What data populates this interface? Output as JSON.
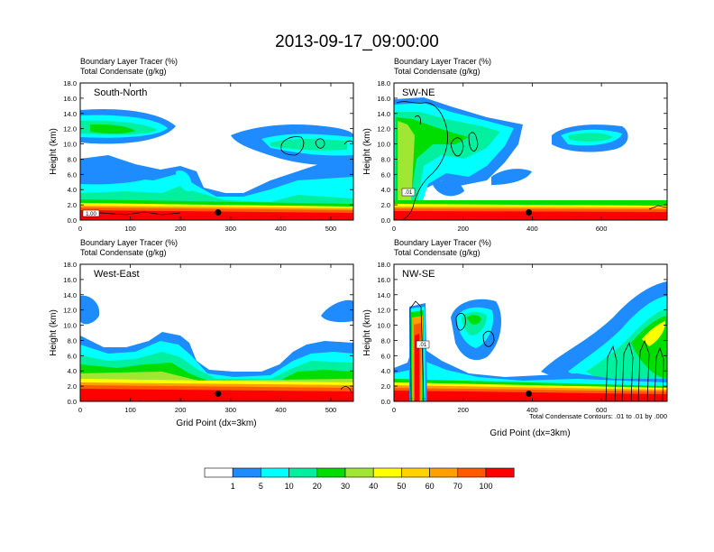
{
  "figure_title": "2013-09-17_09:00:00",
  "shared": {
    "var_line1": "Boundary Layer Tracer   (%)",
    "var_line2": "Total Condensate   (g/kg)",
    "ylabel": "Height (km)",
    "xlabel": "Grid Point (dx=3km)",
    "contour_note": "Total Condensate Contours: .01 to .01 by .000"
  },
  "colors": {
    "palette": [
      "#ffffff",
      "#1e8cff",
      "#00ffff",
      "#00f0a0",
      "#00dd00",
      "#a0e632",
      "#ffff00",
      "#ffd200",
      "#ffa000",
      "#ff5a00",
      "#ff0000"
    ],
    "dot": "#000000",
    "frame": "#000000"
  },
  "colorbar": {
    "labels": [
      "1",
      "5",
      "10",
      "20",
      "30",
      "40",
      "50",
      "60",
      "70",
      "100"
    ]
  },
  "chart_data": [
    {
      "type": "heatmap",
      "title": "South-North",
      "xlabel": "",
      "ylabel": "Height (km)",
      "xlim": [
        0,
        545
      ],
      "ylim": [
        0,
        18
      ],
      "xticks": [
        "0",
        "100",
        "200",
        "300",
        "400",
        "500"
      ],
      "yticks": [
        "0.0",
        "2.0",
        "4.0",
        "6.0",
        "8.0",
        "10.0",
        "12.0",
        "14.0",
        "16.0",
        "18.0"
      ],
      "marker": {
        "x": 275,
        "y": 1.0
      },
      "contour_labels": [
        "1.00"
      ]
    },
    {
      "type": "heatmap",
      "title": "SW-NE",
      "xlabel": "",
      "ylabel": "Height (km)",
      "xlim": [
        0,
        790
      ],
      "ylim": [
        0,
        18
      ],
      "xticks": [
        "0",
        "200",
        "400",
        "600"
      ],
      "yticks": [
        "0.0",
        "2.0",
        "4.0",
        "6.0",
        "8.0",
        "10.0",
        "12.0",
        "14.0",
        "16.0",
        "18.0"
      ],
      "marker": {
        "x": 390,
        "y": 1.0
      },
      "contour_labels": [
        ".01"
      ]
    },
    {
      "type": "heatmap",
      "title": "West-East",
      "xlabel": "Grid Point (dx=3km)",
      "ylabel": "Height (km)",
      "xlim": [
        0,
        545
      ],
      "ylim": [
        0,
        18
      ],
      "xticks": [
        "0",
        "100",
        "200",
        "300",
        "400",
        "500"
      ],
      "yticks": [
        "0.0",
        "2.0",
        "4.0",
        "6.0",
        "8.0",
        "10.0",
        "12.0",
        "14.0",
        "16.0",
        "18.0"
      ],
      "marker": {
        "x": 275,
        "y": 1.0
      },
      "contour_labels": []
    },
    {
      "type": "heatmap",
      "title": "NW-SE",
      "xlabel": "Grid Point (dx=3km)",
      "ylabel": "Height (km)",
      "xlim": [
        0,
        790
      ],
      "ylim": [
        0,
        18
      ],
      "xticks": [
        "0",
        "200",
        "400",
        "600"
      ],
      "yticks": [
        "0.0",
        "2.0",
        "4.0",
        "6.0",
        "8.0",
        "10.0",
        "12.0",
        "14.0",
        "16.0",
        "18.0"
      ],
      "marker": {
        "x": 390,
        "y": 1.0
      },
      "contour_labels": [
        ".01"
      ]
    }
  ]
}
